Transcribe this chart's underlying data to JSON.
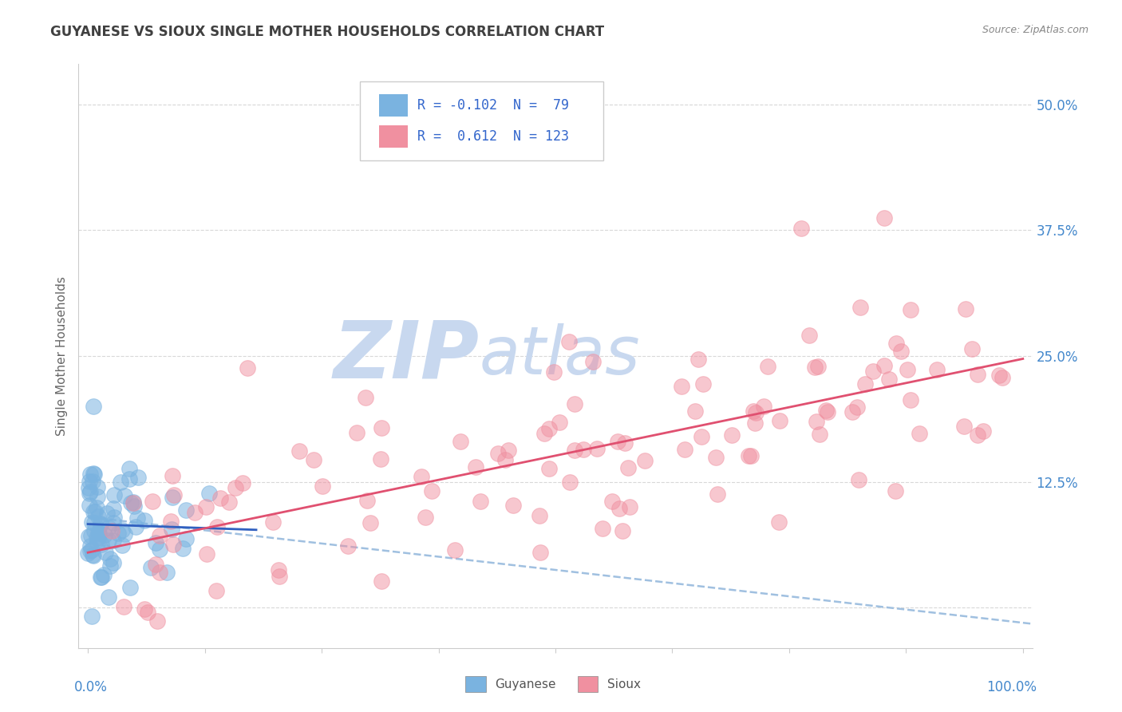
{
  "title": "GUYANESE VS SIOUX SINGLE MOTHER HOUSEHOLDS CORRELATION CHART",
  "source": "Source: ZipAtlas.com",
  "ylabel": "Single Mother Households",
  "yticks": [
    0.0,
    0.125,
    0.25,
    0.375,
    0.5
  ],
  "ytick_labels": [
    "",
    "12.5%",
    "25.0%",
    "37.5%",
    "50.0%"
  ],
  "guyanese_color": "#7ab3e0",
  "sioux_color": "#f090a0",
  "trend_guyanese_color": "#3060c0",
  "trend_sioux_color": "#e05070",
  "trend_dashed_color": "#a0c0e0",
  "watermark_zip": "ZIP",
  "watermark_atlas": "atlas",
  "watermark_color_zip": "#c8d8ef",
  "watermark_color_atlas": "#c8d8ef",
  "background_color": "#ffffff",
  "grid_color": "#d8d8d8",
  "title_color": "#404040",
  "axis_label_color": "#4488cc",
  "legend_text_color": "#3366cc",
  "legend_r1": "R = -0.102",
  "legend_n1": "N =  79",
  "legend_r2": "R =  0.612",
  "legend_n2": "N = 123",
  "seed_guy": 42,
  "seed_sioux": 17
}
